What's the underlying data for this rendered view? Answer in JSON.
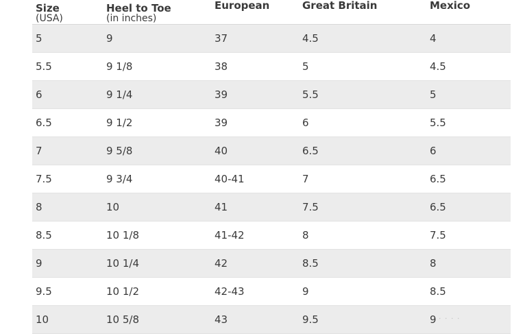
{
  "table": {
    "headers": [
      {
        "main": "Size",
        "sub": "(USA)"
      },
      {
        "main": "Heel to Toe",
        "sub": "(in inches)"
      },
      {
        "main": "European",
        "sub": ""
      },
      {
        "main": "Great Britain",
        "sub": ""
      },
      {
        "main": "Mexico",
        "sub": ""
      }
    ],
    "rows": [
      [
        "5",
        "9",
        "37",
        "4.5",
        "4"
      ],
      [
        "5.5",
        "9 1/8",
        "38",
        "5",
        "4.5"
      ],
      [
        "6",
        "9 1/4",
        "39",
        "5.5",
        "5"
      ],
      [
        "6.5",
        "9 1/2",
        "39",
        "6",
        "5.5"
      ],
      [
        "7",
        "9 5/8",
        "40",
        "6.5",
        "6"
      ],
      [
        "7.5",
        "9 3/4",
        "40-41",
        "7",
        "6.5"
      ],
      [
        "8",
        "10",
        "41",
        "7.5",
        "6.5"
      ],
      [
        "8.5",
        "10 1/8",
        "41-42",
        "8",
        "7.5"
      ],
      [
        "9",
        "10 1/4",
        "42",
        "8.5",
        "8"
      ],
      [
        "9.5",
        "10 1/2",
        "42-43",
        "9",
        "8.5"
      ],
      [
        "10",
        "10 5/8",
        "43",
        "9.5",
        "9"
      ]
    ]
  },
  "colors": {
    "row_stripe": "#ececec",
    "row_plain": "#ffffff",
    "text": "#3a3a3a"
  }
}
